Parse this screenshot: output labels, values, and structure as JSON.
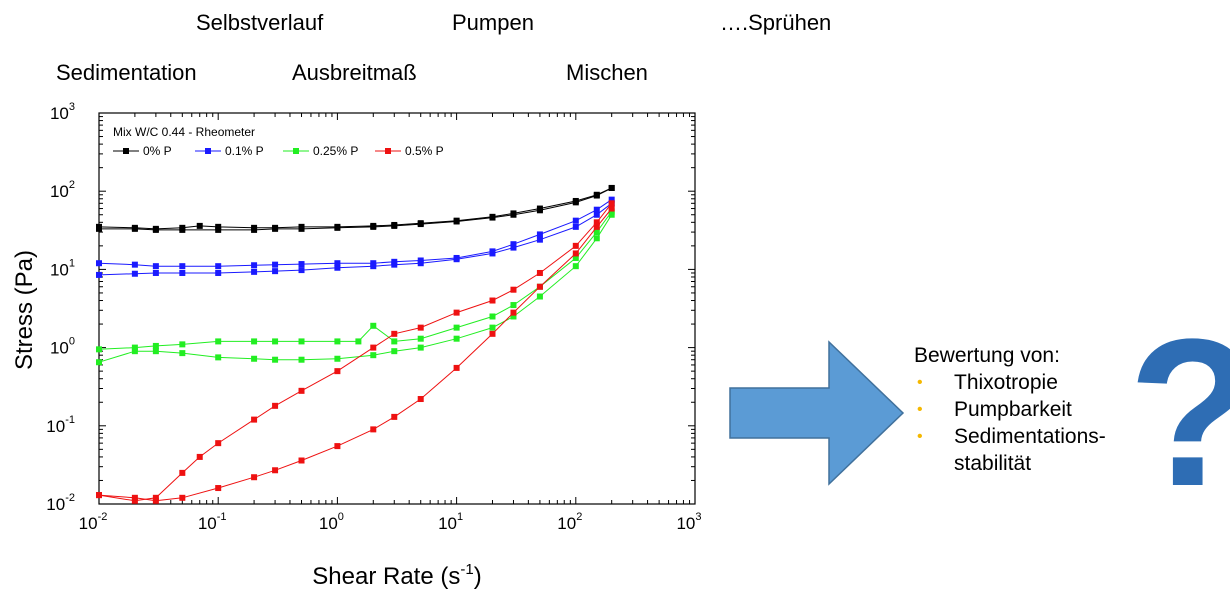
{
  "header_labels": {
    "selbstverlauf": "Selbstverlauf",
    "pumpen": "Pumpen",
    "spruehen": "….Sprühen",
    "sedimentation": "Sedimentation",
    "ausbreitmass": "Ausbreitmaß",
    "mischen": "Mischen"
  },
  "evaluation": {
    "heading": "Bewertung von:",
    "items": [
      "Thixotropie",
      "Pumpbarkeit",
      "Sedimentations-",
      "stabilität"
    ],
    "bullet_color": "#f5b800",
    "question_mark": "?",
    "question_color": "#2e6db4",
    "arrow_color": "#5b9bd5"
  },
  "chart_data": {
    "type": "line",
    "legend_title": "Mix W/C 0.44 - Rheometer",
    "legend_placement": "top-left",
    "xlabel_main": "Shear Rate (s",
    "xlabel_sup": "-1",
    "xlabel_close": ")",
    "ylabel": "Stress (Pa)",
    "x_scale": "log",
    "y_scale": "log",
    "xlim": [
      0.01,
      1000
    ],
    "ylim": [
      0.01,
      1000
    ],
    "grid": false,
    "x_tick_labels": [
      {
        "base": "10",
        "exp": "-2"
      },
      {
        "base": "10",
        "exp": "-1"
      },
      {
        "base": "10",
        "exp": "0"
      },
      {
        "base": "10",
        "exp": "1"
      },
      {
        "base": "10",
        "exp": "2"
      },
      {
        "base": "10",
        "exp": "3"
      }
    ],
    "y_tick_labels": [
      {
        "base": "10",
        "exp": "-2"
      },
      {
        "base": "10",
        "exp": "-1"
      },
      {
        "base": "10",
        "exp": "0"
      },
      {
        "base": "10",
        "exp": "1"
      },
      {
        "base": "10",
        "exp": "2"
      },
      {
        "base": "10",
        "exp": "3"
      }
    ],
    "series": [
      {
        "name": "0% P",
        "color": "#000000",
        "up": [
          [
            0.01,
            33
          ],
          [
            0.02,
            33
          ],
          [
            0.03,
            32
          ],
          [
            0.05,
            32
          ],
          [
            0.1,
            32
          ],
          [
            0.2,
            32
          ],
          [
            0.3,
            33
          ],
          [
            0.5,
            33
          ],
          [
            1,
            34
          ],
          [
            2,
            35
          ],
          [
            3,
            36
          ],
          [
            5,
            38
          ],
          [
            10,
            41
          ],
          [
            20,
            46
          ],
          [
            30,
            50
          ],
          [
            50,
            57
          ],
          [
            100,
            72
          ],
          [
            150,
            88
          ],
          [
            200,
            110
          ]
        ],
        "down": [
          [
            200,
            110
          ],
          [
            150,
            90
          ],
          [
            100,
            75
          ],
          [
            50,
            60
          ],
          [
            30,
            52
          ],
          [
            20,
            47
          ],
          [
            10,
            42
          ],
          [
            5,
            39
          ],
          [
            3,
            37
          ],
          [
            2,
            36
          ],
          [
            1,
            35
          ],
          [
            0.5,
            35
          ],
          [
            0.3,
            34
          ],
          [
            0.2,
            34
          ],
          [
            0.1,
            35
          ],
          [
            0.07,
            36
          ],
          [
            0.05,
            34
          ],
          [
            0.03,
            33
          ],
          [
            0.02,
            34
          ],
          [
            0.01,
            35
          ]
        ]
      },
      {
        "name": "0.1% P",
        "color": "#1a1aff",
        "up": [
          [
            0.01,
            8.5
          ],
          [
            0.02,
            8.8
          ],
          [
            0.03,
            9
          ],
          [
            0.05,
            9
          ],
          [
            0.1,
            9
          ],
          [
            0.2,
            9.3
          ],
          [
            0.3,
            9.5
          ],
          [
            0.5,
            9.8
          ],
          [
            1,
            10.5
          ],
          [
            2,
            11
          ],
          [
            3,
            11.5
          ],
          [
            5,
            12
          ],
          [
            10,
            13.5
          ],
          [
            20,
            16
          ],
          [
            30,
            19
          ],
          [
            50,
            24
          ],
          [
            100,
            35
          ],
          [
            150,
            50
          ],
          [
            200,
            70
          ]
        ],
        "down": [
          [
            200,
            78
          ],
          [
            150,
            58
          ],
          [
            100,
            42
          ],
          [
            50,
            28
          ],
          [
            30,
            21
          ],
          [
            20,
            17
          ],
          [
            10,
            14
          ],
          [
            5,
            13
          ],
          [
            3,
            12.5
          ],
          [
            2,
            12
          ],
          [
            1,
            12
          ],
          [
            0.5,
            11.7
          ],
          [
            0.3,
            11.5
          ],
          [
            0.2,
            11.3
          ],
          [
            0.1,
            11
          ],
          [
            0.05,
            11
          ],
          [
            0.03,
            11
          ],
          [
            0.02,
            11.5
          ],
          [
            0.01,
            12
          ]
        ]
      },
      {
        "name": "0.25% P",
        "color": "#22ee22",
        "up": [
          [
            0.01,
            0.65
          ],
          [
            0.02,
            0.9
          ],
          [
            0.03,
            0.9
          ],
          [
            0.05,
            0.85
          ],
          [
            0.1,
            0.75
          ],
          [
            0.2,
            0.72
          ],
          [
            0.3,
            0.7
          ],
          [
            0.5,
            0.7
          ],
          [
            1,
            0.72
          ],
          [
            2,
            0.8
          ],
          [
            3,
            0.9
          ],
          [
            5,
            1.0
          ],
          [
            10,
            1.3
          ],
          [
            20,
            1.8
          ],
          [
            30,
            2.5
          ],
          [
            50,
            4.5
          ],
          [
            100,
            11
          ],
          [
            150,
            25
          ],
          [
            200,
            50
          ]
        ],
        "down": [
          [
            200,
            55
          ],
          [
            150,
            30
          ],
          [
            100,
            14
          ],
          [
            50,
            6
          ],
          [
            30,
            3.5
          ],
          [
            20,
            2.5
          ],
          [
            10,
            1.8
          ],
          [
            5,
            1.3
          ],
          [
            3,
            1.2
          ],
          [
            2,
            1.9
          ],
          [
            1.5,
            1.2
          ],
          [
            1,
            1.2
          ],
          [
            0.5,
            1.2
          ],
          [
            0.3,
            1.2
          ],
          [
            0.2,
            1.2
          ],
          [
            0.1,
            1.2
          ],
          [
            0.05,
            1.1
          ],
          [
            0.03,
            1.05
          ],
          [
            0.02,
            1.0
          ],
          [
            0.01,
            0.95
          ]
        ]
      },
      {
        "name": "0.5% P",
        "color": "#ee1111",
        "up": [
          [
            0.01,
            0.013
          ],
          [
            0.02,
            0.012
          ],
          [
            0.03,
            0.011
          ],
          [
            0.05,
            0.012
          ],
          [
            0.1,
            0.016
          ],
          [
            0.2,
            0.022
          ],
          [
            0.3,
            0.027
          ],
          [
            0.5,
            0.036
          ],
          [
            1,
            0.055
          ],
          [
            2,
            0.09
          ],
          [
            3,
            0.13
          ],
          [
            5,
            0.22
          ],
          [
            10,
            0.55
          ],
          [
            20,
            1.5
          ],
          [
            30,
            2.8
          ],
          [
            50,
            6
          ],
          [
            100,
            16
          ],
          [
            150,
            35
          ],
          [
            200,
            60
          ]
        ],
        "down": [
          [
            200,
            70
          ],
          [
            150,
            40
          ],
          [
            100,
            20
          ],
          [
            50,
            9
          ],
          [
            30,
            5.5
          ],
          [
            20,
            4
          ],
          [
            10,
            2.8
          ],
          [
            5,
            1.8
          ],
          [
            3,
            1.5
          ],
          [
            2,
            1.0
          ],
          [
            1,
            0.5
          ],
          [
            0.5,
            0.28
          ],
          [
            0.3,
            0.18
          ],
          [
            0.2,
            0.12
          ],
          [
            0.1,
            0.06
          ],
          [
            0.07,
            0.04
          ],
          [
            0.05,
            0.025
          ],
          [
            0.03,
            0.012
          ],
          [
            0.02,
            0.011
          ],
          [
            0.01,
            0.013
          ]
        ]
      }
    ]
  }
}
